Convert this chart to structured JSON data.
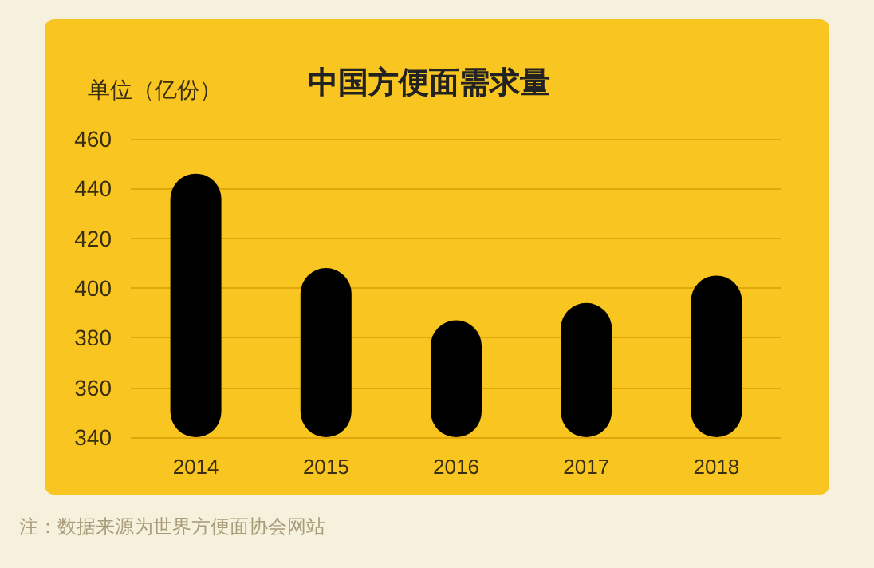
{
  "chart_data": {
    "type": "bar",
    "title": "中国方便面需求量",
    "ylabel": "单位（亿份）",
    "annotations": [
      "注：数据来源为世界方便面协会网站"
    ],
    "categories": [
      "2014",
      "2015",
      "2016",
      "2017",
      "2018"
    ],
    "values": [
      446,
      408,
      387,
      394,
      405
    ],
    "color": "#000000",
    "ylim": [
      340,
      460
    ],
    "yticks": [
      340,
      360,
      380,
      400,
      420,
      440,
      460
    ],
    "grid": "y"
  }
}
